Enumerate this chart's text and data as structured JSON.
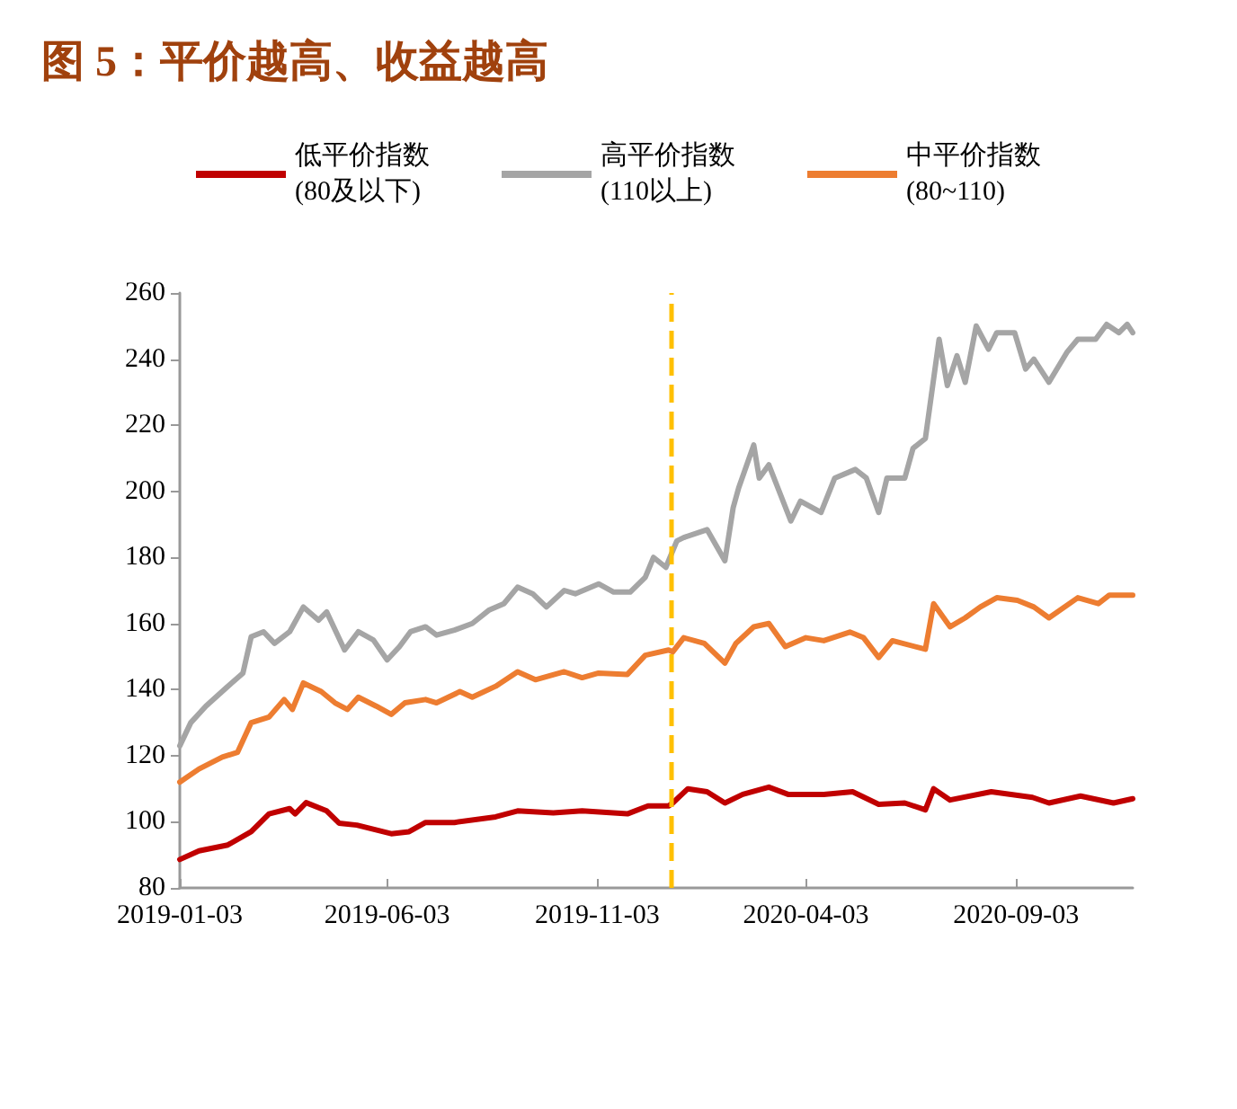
{
  "chart_data": {
    "type": "line",
    "title": "图 5：平价越高、收益越高",
    "xlim": [
      "2019-01-03",
      "2020-11-27"
    ],
    "xticks": [
      "2019-01-03",
      "2019-06-03",
      "2019-11-03",
      "2020-04-03",
      "2020-09-03"
    ],
    "ylim": [
      80,
      260
    ],
    "yticks": [
      80,
      100,
      120,
      140,
      160,
      180,
      200,
      220,
      240,
      260
    ],
    "grid": false,
    "legend": "top",
    "marker": "none",
    "line_style": "solid",
    "ref_lines": [
      {
        "axis": "x",
        "value": "2019-12-27",
        "color": "#ffc000",
        "line_style": "dashed"
      }
    ],
    "series": [
      {
        "name": "低平价指数\n(80及以下)",
        "color": "#c00000",
        "x": [
          "2019-01-03",
          "2019-01-17",
          "2019-02-07",
          "2019-02-24",
          "2019-03-09",
          "2019-03-24",
          "2019-03-28",
          "2019-04-05",
          "2019-04-20",
          "2019-04-29",
          "2019-05-12",
          "2019-06-06",
          "2019-06-19",
          "2019-07-01",
          "2019-07-22",
          "2019-08-21",
          "2019-09-06",
          "2019-10-02",
          "2019-10-23",
          "2019-11-25",
          "2019-12-10",
          "2019-12-25",
          "2019-12-28",
          "2020-01-08",
          "2020-01-22",
          "2020-02-04",
          "2020-02-17",
          "2020-03-07",
          "2020-03-21",
          "2020-04-16",
          "2020-05-07",
          "2020-05-26",
          "2020-06-14",
          "2020-06-29",
          "2020-07-05",
          "2020-07-17",
          "2020-08-16",
          "2020-09-15",
          "2020-09-27",
          "2020-10-20",
          "2020-11-13",
          "2020-11-27"
        ],
        "values": [
          88.6,
          91.2,
          93,
          97,
          102.4,
          104,
          102.4,
          105.8,
          103.3,
          99.6,
          99,
          96.4,
          97,
          99.8,
          99.8,
          101.5,
          103.3,
          102.7,
          103.3,
          102.4,
          104.8,
          104.8,
          105.7,
          110,
          109.1,
          105.7,
          108.3,
          110.5,
          108.3,
          108.3,
          109.1,
          105.3,
          105.7,
          103.6,
          110,
          106.6,
          109.1,
          107.4,
          105.7,
          107.8,
          105.7,
          107
        ]
      },
      {
        "name": "高平价指数\n(110以上)",
        "color": "#a5a5a5",
        "x": [
          "2019-01-03",
          "2019-01-11",
          "2019-01-22",
          "2019-02-07",
          "2019-02-18",
          "2019-02-24",
          "2019-03-05",
          "2019-03-13",
          "2019-03-24",
          "2019-04-03",
          "2019-04-14",
          "2019-04-20",
          "2019-05-03",
          "2019-05-13",
          "2019-05-24",
          "2019-06-03",
          "2019-06-12",
          "2019-06-20",
          "2019-07-01",
          "2019-07-09",
          "2019-07-22",
          "2019-08-04",
          "2019-08-16",
          "2019-08-27",
          "2019-09-06",
          "2019-09-17",
          "2019-09-27",
          "2019-10-10",
          "2019-10-18",
          "2019-11-04",
          "2019-11-15",
          "2019-11-27",
          "2019-12-08",
          "2019-12-14",
          "2019-12-23",
          "2019-12-31",
          "2020-01-05",
          "2020-01-22",
          "2020-02-04",
          "2020-02-10",
          "2020-02-14",
          "2020-02-25",
          "2020-02-29",
          "2020-03-07",
          "2020-03-23",
          "2020-03-30",
          "2020-04-14",
          "2020-04-24",
          "2020-05-09",
          "2020-05-17",
          "2020-05-26",
          "2020-06-01",
          "2020-06-14",
          "2020-06-20",
          "2020-06-29",
          "2020-07-09",
          "2020-07-15",
          "2020-07-22",
          "2020-07-28",
          "2020-08-05",
          "2020-08-14",
          "2020-08-20",
          "2020-09-02",
          "2020-09-10",
          "2020-09-16",
          "2020-09-27",
          "2020-10-10",
          "2020-10-18",
          "2020-10-31",
          "2020-11-08",
          "2020-11-17",
          "2020-11-23",
          "2020-11-27"
        ],
        "values": [
          123,
          130,
          135,
          141,
          145,
          156,
          157.5,
          154,
          157.5,
          165,
          161,
          163.5,
          152,
          157.5,
          155,
          149,
          153,
          157.5,
          159,
          156.5,
          158,
          160,
          164,
          166,
          171,
          169,
          165,
          170,
          169,
          172,
          169.5,
          169.5,
          174,
          180,
          177,
          185,
          186,
          188.4,
          179,
          195,
          201,
          214,
          204,
          208,
          191,
          197,
          193.6,
          204,
          206.6,
          204,
          193.6,
          204,
          204,
          213,
          216,
          246,
          232,
          241,
          233,
          250,
          243,
          248,
          248,
          237,
          240,
          233,
          242,
          246,
          246,
          250.5,
          248,
          250.5,
          248
        ]
      },
      {
        "name": "中平价指数\n(80~110)",
        "color": "#ed7d31",
        "x": [
          "2019-01-03",
          "2019-01-17",
          "2019-02-03",
          "2019-02-14",
          "2019-02-24",
          "2019-03-09",
          "2019-03-20",
          "2019-03-26",
          "2019-04-03",
          "2019-04-16",
          "2019-04-26",
          "2019-05-05",
          "2019-05-13",
          "2019-05-26",
          "2019-06-06",
          "2019-06-16",
          "2019-07-01",
          "2019-07-09",
          "2019-07-26",
          "2019-08-04",
          "2019-08-21",
          "2019-09-06",
          "2019-09-19",
          "2019-10-10",
          "2019-10-23",
          "2019-11-04",
          "2019-11-25",
          "2019-12-08",
          "2019-12-25",
          "2019-12-28",
          "2020-01-05",
          "2020-01-20",
          "2020-02-04",
          "2020-02-12",
          "2020-02-25",
          "2020-03-07",
          "2020-03-19",
          "2020-04-03",
          "2020-04-16",
          "2020-05-05",
          "2020-05-15",
          "2020-05-26",
          "2020-06-05",
          "2020-06-29",
          "2020-07-05",
          "2020-07-17",
          "2020-07-28",
          "2020-08-08",
          "2020-08-20",
          "2020-09-04",
          "2020-09-16",
          "2020-09-27",
          "2020-10-18",
          "2020-11-02",
          "2020-11-10",
          "2020-11-27"
        ],
        "values": [
          112,
          116,
          119.6,
          121,
          130,
          131.7,
          137,
          134,
          142,
          139.4,
          136,
          134,
          137.7,
          135,
          132.5,
          136,
          137,
          136,
          139.4,
          137.7,
          141,
          145.4,
          143,
          145.4,
          143.6,
          145,
          144.6,
          150.4,
          152,
          151.4,
          155.7,
          154,
          148,
          154,
          159,
          160,
          153,
          155.7,
          154.8,
          157.4,
          155.7,
          149.7,
          154.8,
          152.2,
          166,
          159,
          161.7,
          165,
          167.8,
          167,
          165,
          161.7,
          167.8,
          166,
          168.6,
          168.6
        ]
      }
    ]
  }
}
